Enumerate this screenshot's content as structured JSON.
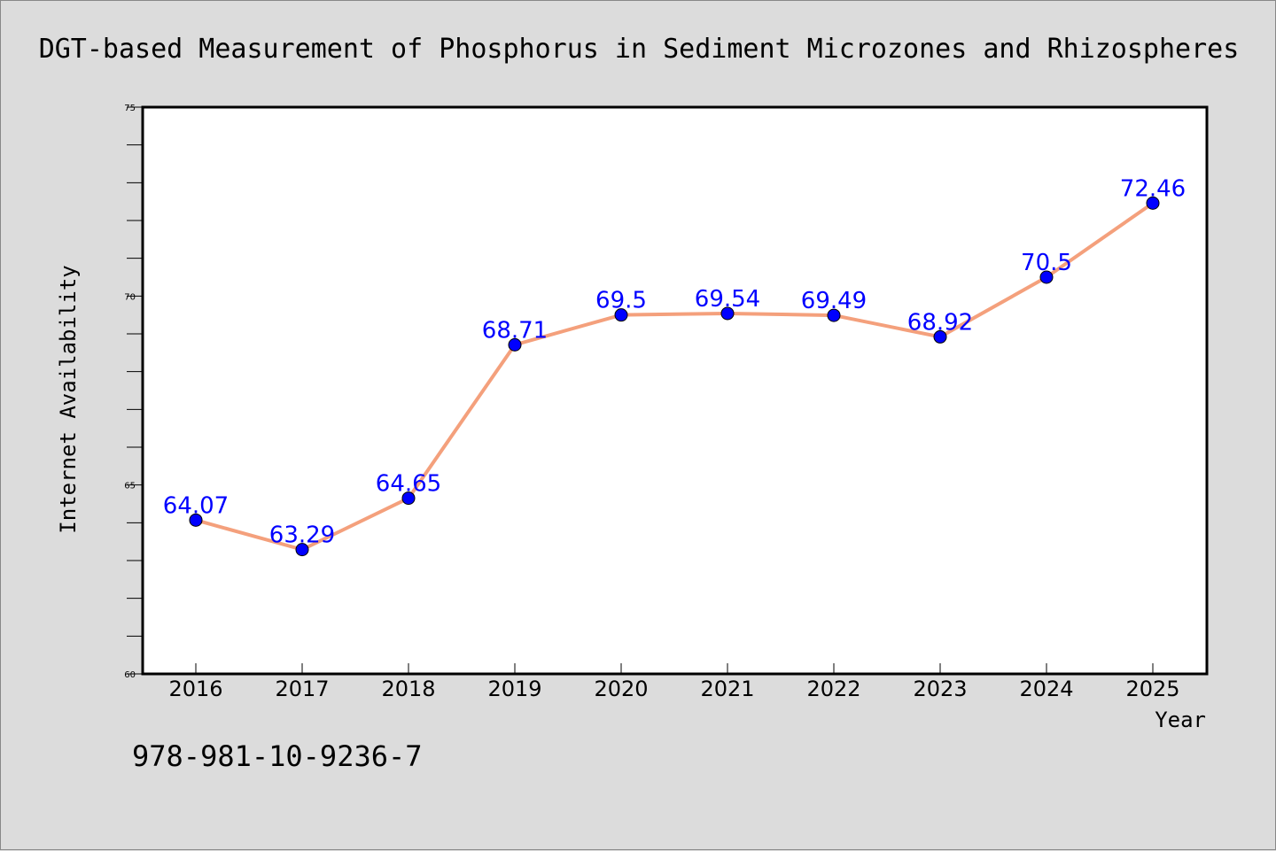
{
  "chart_data": {
    "type": "line",
    "title": "DGT-based Measurement of Phosphorus in Sediment Microzones and Rhizospheres",
    "xlabel": "Year",
    "ylabel": "Internet Availability",
    "categories": [
      "2016",
      "2017",
      "2018",
      "2019",
      "2020",
      "2021",
      "2022",
      "2023",
      "2024",
      "2025"
    ],
    "series": [
      {
        "values": [
          64.07,
          63.29,
          64.65,
          68.71,
          69.5,
          69.54,
          69.49,
          68.92,
          70.5,
          72.46
        ],
        "labels": [
          "64.07",
          "63.29",
          "64.65",
          "68.71",
          "69.5",
          "69.54",
          "69.49",
          "68.92",
          "70.5",
          "72.46"
        ],
        "line_color": "#f4a07c",
        "marker_color": "#0000ff"
      }
    ],
    "ylim": [
      60,
      75
    ],
    "yticks": [
      "60",
      "65",
      "70",
      "75"
    ],
    "grid": false,
    "background": "#dcdcdc",
    "plot_background": "#ffffff"
  },
  "footer": {
    "isbn": "978-981-10-9236-7"
  }
}
